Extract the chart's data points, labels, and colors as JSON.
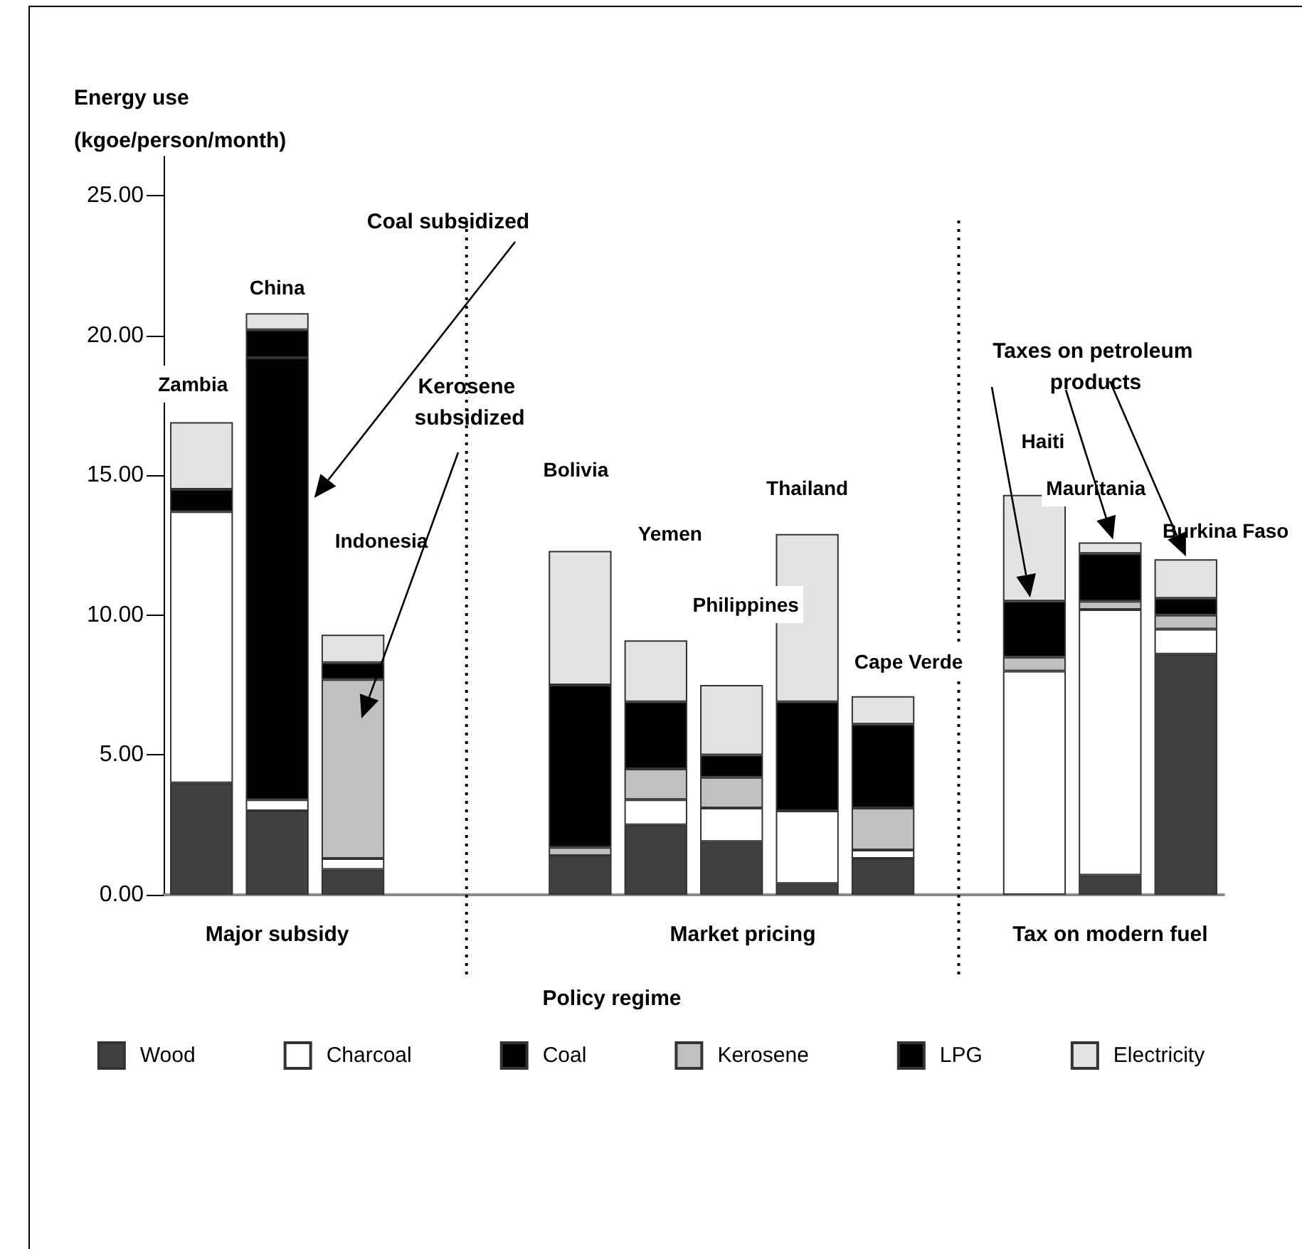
{
  "chart_data": {
    "type": "bar",
    "stacked": true,
    "xlabel": "Policy regime",
    "ylabel": "Energy use\n(kgoe/person/month)",
    "categories": [
      null,
      null,
      null,
      null,
      null,
      null,
      null,
      null,
      null,
      null,
      null,
      null,
      null,
      null
    ],
    "series": [
      {
        "name": "Wood",
        "color": "#404040",
        "values": [
          4.0,
          3.0,
          0.9,
          null,
          null,
          1.4,
          2.5,
          1.9,
          0.4,
          1.3,
          null,
          null,
          0.7,
          8.6
        ]
      },
      {
        "name": "Charcoal",
        "color": "#ffffff",
        "values": [
          9.7,
          0.4,
          0.4,
          null,
          null,
          null,
          0.9,
          1.2,
          2.6,
          0.3,
          null,
          8.0,
          9.5,
          0.9
        ]
      },
      {
        "name": "Coal",
        "color": "#000000",
        "values": [
          null,
          15.8,
          null,
          null,
          null,
          null,
          null,
          null,
          null,
          null,
          null,
          null,
          null,
          null
        ]
      },
      {
        "name": "Kerosene",
        "color": "#c0c0c0",
        "values": [
          null,
          null,
          6.4,
          null,
          null,
          0.3,
          1.1,
          1.1,
          null,
          1.5,
          null,
          0.5,
          0.3,
          0.5
        ]
      },
      {
        "name": "LPG",
        "color": "#000000",
        "values": [
          0.8,
          1.0,
          0.6,
          null,
          null,
          5.8,
          2.4,
          0.8,
          3.9,
          3.0,
          null,
          2.0,
          1.7,
          0.6
        ]
      },
      {
        "name": "Electricity",
        "color": "#e3e3e3",
        "values": [
          2.4,
          0.6,
          1.0,
          null,
          null,
          4.8,
          2.2,
          2.5,
          6.0,
          1.0,
          null,
          3.8,
          0.4,
          1.4
        ]
      }
    ],
    "ylim": [
      0,
      26.4
    ],
    "yticks": [
      {
        "value": 0,
        "label": "0.00"
      },
      {
        "value": 5,
        "label": "5.00"
      },
      {
        "value": 10,
        "label": "10.00"
      },
      {
        "value": 15,
        "label": "15.00"
      },
      {
        "value": 20,
        "label": "20.00"
      },
      {
        "value": 25,
        "label": "25.00"
      }
    ],
    "annotations": [
      "Coal subsidized",
      "Kerosene subsidized",
      "Taxes on petroleum products",
      "Major subsidy",
      "Market pricing",
      "Tax on modern fuel",
      "Zambia",
      "China",
      "Indonesia",
      "Bolivia",
      "Yemen",
      "Philippines",
      "Thailand",
      "Cape Verde",
      "Haiti",
      "Mauritania",
      "Burkina Faso"
    ],
    "legend": "bottom",
    "grid": false
  }
}
